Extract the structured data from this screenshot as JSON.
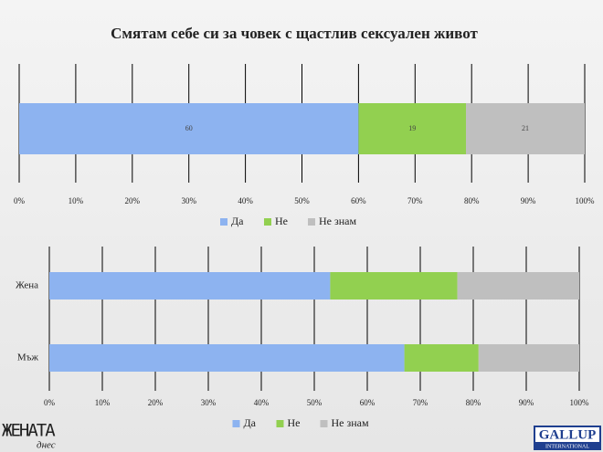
{
  "title": "Смятам себе си за човек с щастлив сексуален живот",
  "chart_data": [
    {
      "type": "stacked-barh",
      "categories": [
        null
      ],
      "series": [
        {
          "name": "Да",
          "color": "#8db3f0",
          "values": [
            60
          ]
        },
        {
          "name": "Не",
          "color": "#92d050",
          "values": [
            19
          ]
        },
        {
          "name": "Не знам",
          "color": "#bfbfbf",
          "values": [
            21
          ]
        }
      ],
      "xlim": [
        0,
        100
      ],
      "xticks": [
        {
          "value": 0,
          "label": "0%"
        },
        {
          "value": 10,
          "label": "10%"
        },
        {
          "value": 20,
          "label": "20%"
        },
        {
          "value": 30,
          "label": "30%"
        },
        {
          "value": 40,
          "label": "40%"
        },
        {
          "value": 50,
          "label": "50%"
        },
        {
          "value": 60,
          "label": "60%"
        },
        {
          "value": 70,
          "label": "70%"
        },
        {
          "value": 80,
          "label": "80%"
        },
        {
          "value": 90,
          "label": "90%"
        },
        {
          "value": 100,
          "label": "100%"
        }
      ],
      "grid": true,
      "data_labels": true,
      "legend": "bottom"
    },
    {
      "type": "stacked-barh",
      "categories": [
        "Жена",
        "Мъж"
      ],
      "series": [
        {
          "name": "Да",
          "color": "#8db3f0",
          "values": [
            53,
            67
          ]
        },
        {
          "name": "Не",
          "color": "#92d050",
          "values": [
            24,
            14
          ]
        },
        {
          "name": "Не знам",
          "color": "#bfbfbf",
          "values": [
            23,
            19
          ]
        }
      ],
      "xlim": [
        0,
        100
      ],
      "xticks": [
        {
          "value": 0,
          "label": "0%"
        },
        {
          "value": 10,
          "label": "10%"
        },
        {
          "value": 20,
          "label": "20%"
        },
        {
          "value": 30,
          "label": "30%"
        },
        {
          "value": 40,
          "label": "40%"
        },
        {
          "value": 50,
          "label": "50%"
        },
        {
          "value": 60,
          "label": "60%"
        },
        {
          "value": 70,
          "label": "70%"
        },
        {
          "value": 80,
          "label": "80%"
        },
        {
          "value": 90,
          "label": "90%"
        },
        {
          "value": 100,
          "label": "100%"
        }
      ],
      "grid": true,
      "data_labels": false,
      "legend": "bottom"
    }
  ],
  "logos": [
    {
      "name": "ЖЕНАТА",
      "sub": "днес"
    },
    {
      "name": "GALLUP",
      "sub": "INTERNATIONAL"
    }
  ]
}
